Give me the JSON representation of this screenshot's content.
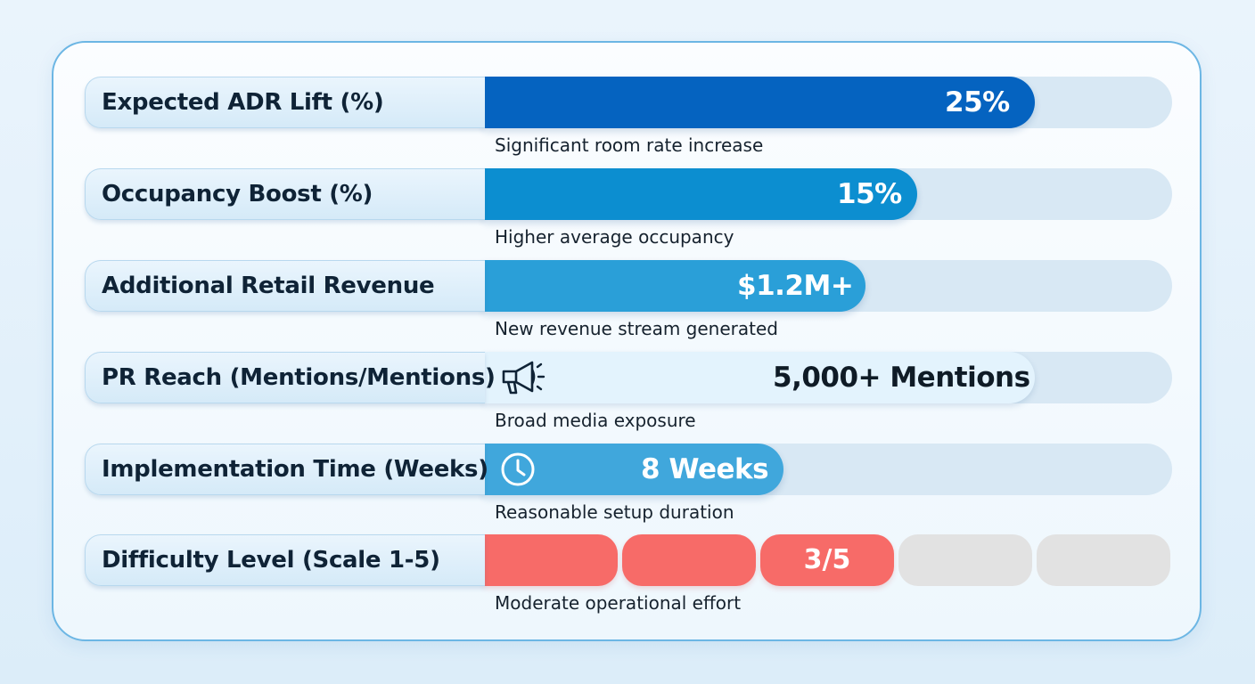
{
  "colors": {
    "adr_fill": "#0563c0",
    "occupancy_fill": "#0c8ed0",
    "retail_fill": "#2a9fd8",
    "pr_fill": "#e3f3fd",
    "time_fill": "#40a7dc",
    "difficulty_active": "#f76b68",
    "difficulty_inactive": "#e2e2e2",
    "track": "#d8e8f4"
  },
  "chart_data": {
    "type": "bar",
    "rows": [
      {
        "label": "Expected ADR Lift (%)",
        "value_text": "25%",
        "value": 25,
        "fill_fraction": 0.8,
        "subtitle": "Significant room rate increase"
      },
      {
        "label": "Occupancy Boost (%)",
        "value_text": "15%",
        "value": 15,
        "fill_fraction": 0.63,
        "subtitle": "Higher average occupancy"
      },
      {
        "label": "Additional Retail Revenue",
        "value_text": "$1.2M+",
        "value": 1.2,
        "fill_fraction": 0.555,
        "subtitle": "New revenue stream generated"
      },
      {
        "label": "PR Reach (Mentions/Mentions)",
        "value_text": "5,000+ Mentions",
        "value": 5000,
        "fill_fraction": 0.8,
        "icon": "megaphone-icon",
        "subtitle": "Broad media exposure"
      },
      {
        "label": "Implementation Time (Weeks)",
        "value_text": "8 Weeks",
        "value": 8,
        "fill_fraction": 0.435,
        "icon": "clock-icon",
        "subtitle": "Reasonable setup duration"
      },
      {
        "label": "Difficulty Level (Scale 1-5)",
        "value_text": "3/5",
        "value": 3,
        "max": 5,
        "subtitle": "Moderate operational effort"
      }
    ]
  }
}
